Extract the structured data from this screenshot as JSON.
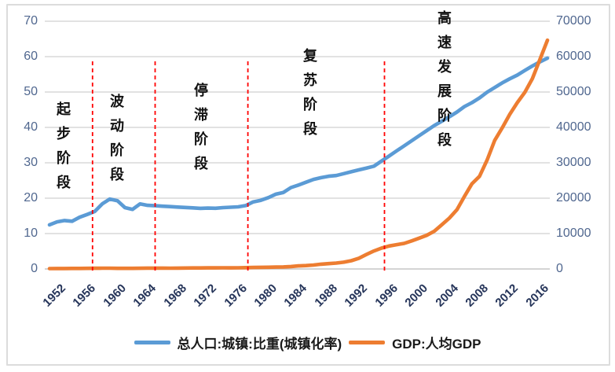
{
  "chart_data": {
    "type": "line",
    "title": "",
    "x_start_year": 1952,
    "x_end_year": 2018,
    "x_ticks": [
      "1952",
      "1956",
      "1960",
      "1964",
      "1968",
      "1972",
      "1976",
      "1980",
      "1984",
      "1988",
      "1992",
      "1996",
      "2000",
      "2004",
      "2008",
      "2012",
      "2016"
    ],
    "left_axis": {
      "ticks": [
        "0",
        "10",
        "20",
        "30",
        "40",
        "50",
        "60",
        "70"
      ],
      "min": 0,
      "max": 70,
      "step": 10
    },
    "right_axis": {
      "ticks": [
        "0",
        "10000",
        "20000",
        "30000",
        "40000",
        "50000",
        "60000",
        "70000"
      ],
      "min": 0,
      "max": 70000,
      "step": 10000
    },
    "grid": true,
    "legend_position": "bottom",
    "series": [
      {
        "name": "总人口:城镇:比重(城镇化率)",
        "axis": "left",
        "color": "#5B9BD5",
        "values": [
          12.46,
          13.31,
          13.69,
          13.48,
          14.62,
          15.39,
          16.25,
          18.41,
          19.75,
          19.29,
          17.33,
          16.84,
          18.37,
          17.98,
          17.86,
          17.74,
          17.62,
          17.5,
          17.38,
          17.26,
          17.13,
          17.2,
          17.16,
          17.34,
          17.44,
          17.55,
          17.92,
          18.96,
          19.39,
          20.16,
          21.13,
          21.62,
          23.01,
          23.71,
          24.52,
          25.32,
          25.81,
          26.21,
          26.41,
          26.94,
          27.46,
          27.99,
          28.51,
          29.04,
          30.48,
          31.91,
          33.35,
          34.78,
          36.22,
          37.66,
          39.09,
          40.53,
          41.76,
          42.99,
          44.34,
          45.89,
          46.99,
          48.34,
          49.95,
          51.27,
          52.57,
          53.73,
          54.77,
          56.1,
          57.35,
          58.52,
          59.58
        ]
      },
      {
        "name": "GDP:人均GDP",
        "axis": "right",
        "color": "#ED7D31",
        "values": [
          119,
          142,
          144,
          150,
          165,
          168,
          200,
          216,
          218,
          185,
          173,
          181,
          208,
          240,
          254,
          235,
          222,
          243,
          275,
          288,
          292,
          309,
          310,
          327,
          316,
          339,
          385,
          423,
          468,
          497,
          533,
          583,
          697,
          858,
          963,
          1112,
          1366,
          1519,
          1663,
          1912,
          2334,
          3027,
          4081,
          5091,
          5898,
          6481,
          6860,
          7229,
          7942,
          8717,
          9506,
          10666,
          12487,
          14368,
          16738,
          20494,
          24100,
          26180,
          30808,
          36302,
          39874,
          43684,
          47005,
          49922,
          53783,
          59201,
          64644
        ]
      }
    ],
    "phase_divider_years": [
      1957.7,
      1966,
      1978.3,
      1996.4
    ],
    "divider_color": "#FF0000",
    "phases": [
      "起步阶段",
      "波动阶段",
      "停滞阶段",
      "复苏阶段",
      "高速发展阶段"
    ],
    "legend": [
      {
        "label": "总人口:城镇:比重(城镇化率)",
        "color": "#5B9BD5"
      },
      {
        "label": "GDP:人均GDP",
        "color": "#ED7D31"
      }
    ],
    "gridline_color": "#D9D9D9"
  }
}
